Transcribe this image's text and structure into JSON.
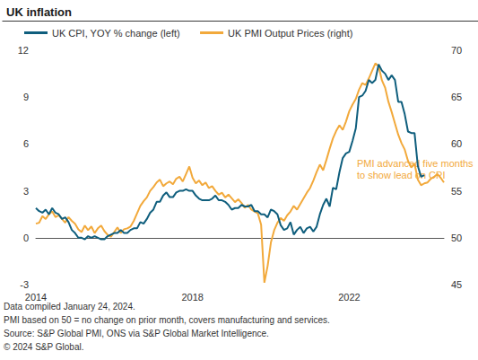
{
  "chart_data": {
    "type": "line",
    "title": "UK inflation",
    "categories": [
      "2014",
      null,
      null,
      null,
      null,
      null,
      null,
      null,
      null,
      null,
      null,
      null,
      null,
      null,
      null,
      null,
      null,
      null,
      null,
      null,
      null,
      null,
      null,
      null,
      null,
      null,
      null,
      null,
      null,
      null,
      null,
      null,
      null,
      null,
      null,
      null,
      null,
      null,
      null,
      null,
      null,
      null,
      null,
      null,
      null,
      null,
      null,
      null,
      "2018",
      null,
      null,
      null,
      null,
      null,
      null,
      null,
      null,
      null,
      null,
      null,
      null,
      null,
      null,
      null,
      null,
      null,
      null,
      null,
      null,
      null,
      null,
      null,
      null,
      null,
      null,
      null,
      null,
      null,
      null,
      null,
      null,
      null,
      null,
      null,
      null,
      null,
      null,
      null,
      null,
      null,
      null,
      null,
      null,
      null,
      null,
      null,
      "2022",
      null,
      null,
      null,
      null,
      null,
      null,
      null,
      null,
      null,
      null,
      null,
      null,
      null,
      null,
      null,
      null,
      null,
      null,
      null,
      null,
      null,
      null,
      null,
      null,
      null,
      null,
      null,
      null,
      null
    ],
    "series": [
      {
        "name": "UK CPI, YOY % change (left)",
        "color": "#0f5e7d",
        "axis": "y",
        "values": [
          1.9,
          1.7,
          1.6,
          1.8,
          1.5,
          1.9,
          1.6,
          1.5,
          1.2,
          1.3,
          1.0,
          0.5,
          0.3,
          0.0,
          0.0,
          -0.1,
          0.1,
          0.0,
          0.1,
          0.0,
          -0.1,
          -0.1,
          0.1,
          0.2,
          0.3,
          0.3,
          0.5,
          0.3,
          0.3,
          0.5,
          0.6,
          0.6,
          1.0,
          0.9,
          1.2,
          1.6,
          1.8,
          2.3,
          2.3,
          2.7,
          2.9,
          2.6,
          2.6,
          2.9,
          3.0,
          3.0,
          3.1,
          3.0,
          3.0,
          2.7,
          2.5,
          2.4,
          2.4,
          2.4,
          2.5,
          2.7,
          2.4,
          2.4,
          2.3,
          2.1,
          1.8,
          1.9,
          1.9,
          2.1,
          2.0,
          2.0,
          2.1,
          1.7,
          1.7,
          1.5,
          1.5,
          1.3,
          1.8,
          1.7,
          1.5,
          0.8,
          0.5,
          0.6,
          1.0,
          0.2,
          0.5,
          0.7,
          0.3,
          0.6,
          0.7,
          0.4,
          0.7,
          1.5,
          2.1,
          2.5,
          2.0,
          3.2,
          3.1,
          4.2,
          5.1,
          5.4,
          5.5,
          6.2,
          7.0,
          9.0,
          9.1,
          9.4,
          10.1,
          9.9,
          10.1,
          11.1,
          10.7,
          10.5,
          10.1,
          10.4,
          10.1,
          8.7,
          8.7,
          7.9,
          6.8,
          6.7,
          6.7,
          4.6,
          3.9,
          4.0,
          null,
          null,
          null,
          null,
          null,
          null
        ]
      },
      {
        "name": "UK PMI Output Prices (right)",
        "color": "#f2a93b",
        "axis": "y2",
        "values": [
          51.5,
          51.6,
          52.3,
          52.0,
          52.5,
          52.8,
          52.2,
          52.4,
          52.0,
          51.6,
          52.2,
          51.8,
          51.5,
          50.9,
          50.6,
          51.3,
          50.8,
          51.2,
          50.5,
          51.0,
          51.3,
          50.7,
          50.3,
          50.1,
          50.6,
          51.1,
          50.5,
          50.9,
          51.0,
          51.2,
          51.8,
          52.6,
          53.4,
          53.9,
          54.3,
          55.0,
          55.4,
          55.9,
          56.2,
          55.5,
          55.8,
          56.0,
          55.7,
          56.3,
          56.5,
          56.0,
          56.8,
          57.6,
          56.4,
          55.8,
          56.1,
          55.6,
          55.9,
          55.3,
          55.5,
          55.0,
          54.6,
          54.8,
          54.3,
          54.6,
          54.2,
          53.8,
          54.1,
          53.7,
          53.2,
          53.5,
          53.0,
          52.8,
          52.6,
          51.4,
          45.2,
          47.0,
          49.5,
          50.8,
          51.6,
          52.1,
          51.8,
          52.4,
          52.8,
          53.4,
          53.0,
          53.6,
          54.2,
          54.8,
          55.3,
          56.1,
          57.0,
          57.8,
          57.2,
          58.3,
          59.5,
          60.6,
          61.4,
          62.0,
          61.5,
          62.4,
          63.5,
          64.2,
          64.8,
          65.8,
          66.5,
          66.3,
          67.0,
          67.8,
          68.6,
          68.3,
          66.8,
          66.0,
          64.5,
          63.4,
          62.2,
          61.0,
          60.1,
          59.4,
          58.2,
          57.5,
          57.9,
          56.2,
          55.6,
          55.8,
          55.9,
          56.3,
          56.5,
          56.8,
          56.4,
          55.9
        ]
      }
    ],
    "ylim": [
      -3,
      12
    ],
    "yticks": [
      -3,
      0,
      3,
      6,
      9,
      12
    ],
    "y2lim": [
      45,
      70
    ],
    "y2ticks": [
      45,
      50,
      55,
      60,
      65,
      70
    ],
    "grid": false,
    "legend": "top",
    "annotation": [
      "PMI advanced five months",
      "to show lead on CPI"
    ],
    "notes": [
      "Data compiled January 24, 2024.",
      "PMI based on 50 = no change on prior month, covers manufacturing and services.",
      "Source: S&P Global PMI, ONS via S&P Global Market Intelligence.",
      "© 2024 S&P Global."
    ]
  }
}
